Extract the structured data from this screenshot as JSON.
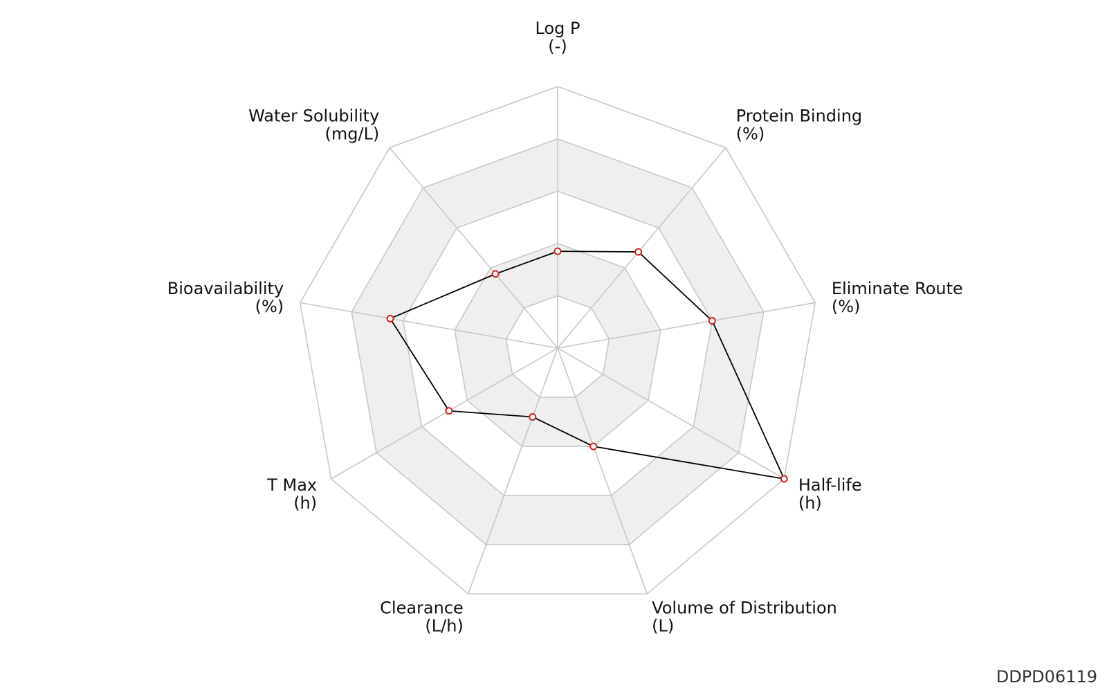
{
  "chart_data": {
    "type": "radar",
    "title": "",
    "axes": [
      {
        "name": "Log P",
        "unit": "(-)"
      },
      {
        "name": "Protein Binding",
        "unit": "(%)"
      },
      {
        "name": "Eliminate Route",
        "unit": "(%)"
      },
      {
        "name": "Half-life",
        "unit": "(h)"
      },
      {
        "name": "Volume of Distribution",
        "unit": "(L)"
      },
      {
        "name": "Clearance",
        "unit": "(L/h)"
      },
      {
        "name": "T Max",
        "unit": "(h)"
      },
      {
        "name": "Bioavailability",
        "unit": "(%)"
      },
      {
        "name": "Water Solubility",
        "unit": "(mg/L)"
      }
    ],
    "rings": 5,
    "ring_fill_colors": [
      "#ffffff",
      "#efefef",
      "#ffffff",
      "#efefef",
      "#ffffff"
    ],
    "grid_color": "#c8c8c8",
    "series": [
      {
        "values": [
          0.37,
          0.48,
          0.6,
          1.0,
          0.4,
          0.28,
          0.48,
          0.65,
          0.37
        ],
        "line_color": "#000000",
        "marker_color": "#cc2222"
      }
    ]
  },
  "footer": {
    "id": "DDPD06119"
  }
}
